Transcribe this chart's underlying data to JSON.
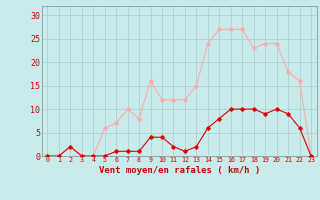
{
  "x": [
    0,
    1,
    2,
    3,
    4,
    5,
    6,
    7,
    8,
    9,
    10,
    11,
    12,
    13,
    14,
    15,
    16,
    17,
    18,
    19,
    20,
    21,
    22,
    23
  ],
  "wind_avg": [
    0,
    0,
    2,
    0,
    0,
    0,
    1,
    1,
    1,
    4,
    4,
    2,
    1,
    2,
    6,
    8,
    10,
    10,
    10,
    9,
    10,
    9,
    6,
    0
  ],
  "wind_gust": [
    0,
    0,
    2,
    0,
    0,
    6,
    7,
    10,
    8,
    16,
    12,
    12,
    12,
    15,
    24,
    27,
    27,
    27,
    23,
    24,
    24,
    18,
    16,
    0
  ],
  "avg_color": "#dd0000",
  "gust_color": "#ffaaaa",
  "bg_color": "#c8ecec",
  "grid_color": "#aacccc",
  "xlabel": "Vent moyen/en rafales ( km/h )",
  "ylabel_ticks": [
    0,
    5,
    10,
    15,
    20,
    25,
    30
  ],
  "ylim": [
    0,
    32
  ],
  "xlim": [
    -0.5,
    23.5
  ],
  "marker": "D",
  "markersize": 1.8,
  "linewidth": 0.8,
  "xlabel_color": "#cc0000",
  "tick_color": "#cc0000",
  "spine_color": "#888888",
  "xlabel_fontsize": 6.5,
  "tick_fontsize_x": 4.8,
  "tick_fontsize_y": 6
}
